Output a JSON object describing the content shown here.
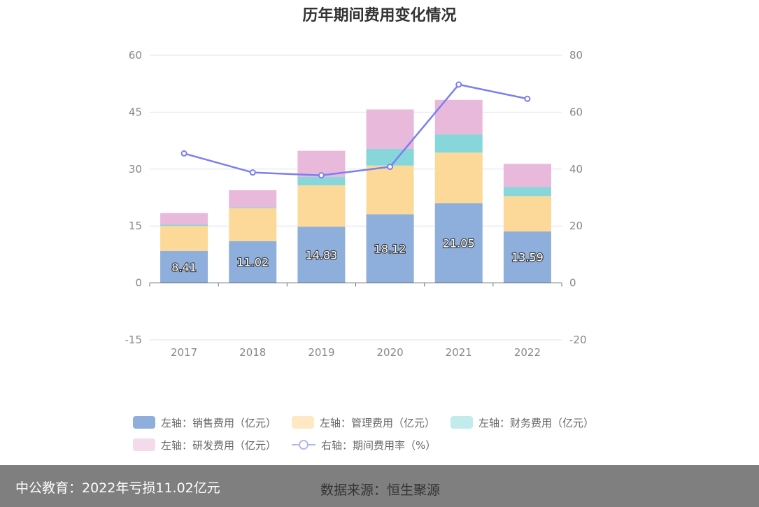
{
  "chart_data": {
    "type": "bar",
    "title": "历年期间费用变化情况",
    "categories": [
      "2017",
      "2018",
      "2019",
      "2020",
      "2021",
      "2022"
    ],
    "stacked": true,
    "left_axis": {
      "ylim": [
        -15,
        60
      ],
      "ticks": [
        -15,
        0,
        15,
        30,
        45,
        60
      ]
    },
    "right_axis": {
      "ylim": [
        -20,
        80
      ],
      "ticks": [
        -20,
        0,
        20,
        40,
        60,
        80
      ]
    },
    "series": [
      {
        "name": "左轴：销售费用（亿元）",
        "axis": "left",
        "type": "bar",
        "color": "#8eaedb",
        "values": [
          8.41,
          11.02,
          14.83,
          18.12,
          21.05,
          13.59
        ],
        "labels": [
          "8.41",
          "11.02",
          "14.83",
          "18.12",
          "21.05",
          "13.59"
        ]
      },
      {
        "name": "左轴：管理费用（亿元）",
        "axis": "left",
        "type": "bar",
        "color": "#fdd999",
        "values": [
          6.6,
          8.7,
          10.9,
          12.8,
          13.3,
          9.3
        ]
      },
      {
        "name": "左轴：财务费用（亿元）",
        "axis": "left",
        "type": "bar",
        "color": "#87d6d9",
        "values": [
          0.3,
          0.2,
          2.2,
          4.4,
          4.8,
          2.4
        ]
      },
      {
        "name": "左轴：研发费用（亿元）",
        "axis": "left",
        "type": "bar",
        "color": "#e8b9da",
        "values": [
          3.1,
          4.5,
          6.9,
          10.4,
          9.1,
          6.1
        ]
      },
      {
        "name": "右轴：期间费用率（%）",
        "axis": "right",
        "type": "line",
        "color": "#7b7ff0",
        "values": [
          45.5,
          38.8,
          37.8,
          40.8,
          69.7,
          64.7
        ]
      }
    ],
    "legend_position": "bottom",
    "grid": true
  },
  "legend_swatches": {
    "sales": "#8eaedb",
    "admin": "#ffe8c4",
    "finance": "#c2ebec",
    "rnd": "#f3dbec",
    "rate": "#b3b6f6"
  },
  "footer": {
    "left_text": "中公教育：2022年亏损11.02亿元",
    "right_text": "数据来源：恒生聚源"
  }
}
